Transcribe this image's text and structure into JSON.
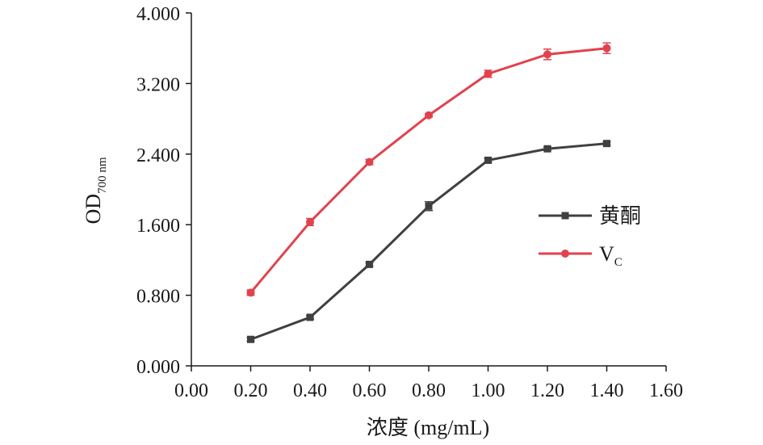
{
  "chart_data": {
    "type": "line",
    "xlabel": "浓度 (mg/mL)",
    "ylabel_main": "OD",
    "ylabel_sub": "700 nm",
    "xlim": [
      0,
      1.6
    ],
    "ylim": [
      0,
      4.0
    ],
    "x_ticks": [
      "0.00",
      "0.20",
      "0.40",
      "0.60",
      "0.80",
      "1.00",
      "1.20",
      "1.40",
      "1.60"
    ],
    "y_ticks": [
      "0.000",
      "0.800",
      "1.600",
      "2.400",
      "3.200",
      "4.000"
    ],
    "x": [
      0.2,
      0.4,
      0.6,
      0.8,
      1.0,
      1.2,
      1.4
    ],
    "grid": false,
    "legend_position": "right",
    "series": [
      {
        "name": "黄酮",
        "name_sub": "",
        "color": "#404040",
        "marker": "square",
        "values": [
          0.3,
          0.55,
          1.15,
          1.81,
          2.33,
          2.46,
          2.52
        ],
        "errors": [
          0.02,
          0.02,
          0.02,
          0.05,
          0.02,
          0.02,
          0.02
        ]
      },
      {
        "name": "V",
        "name_sub": "C",
        "color": "#e0434d",
        "marker": "circle",
        "values": [
          0.83,
          1.63,
          2.31,
          2.84,
          3.31,
          3.53,
          3.6
        ],
        "errors": [
          0.03,
          0.04,
          0.03,
          0.02,
          0.04,
          0.06,
          0.06
        ]
      }
    ]
  }
}
